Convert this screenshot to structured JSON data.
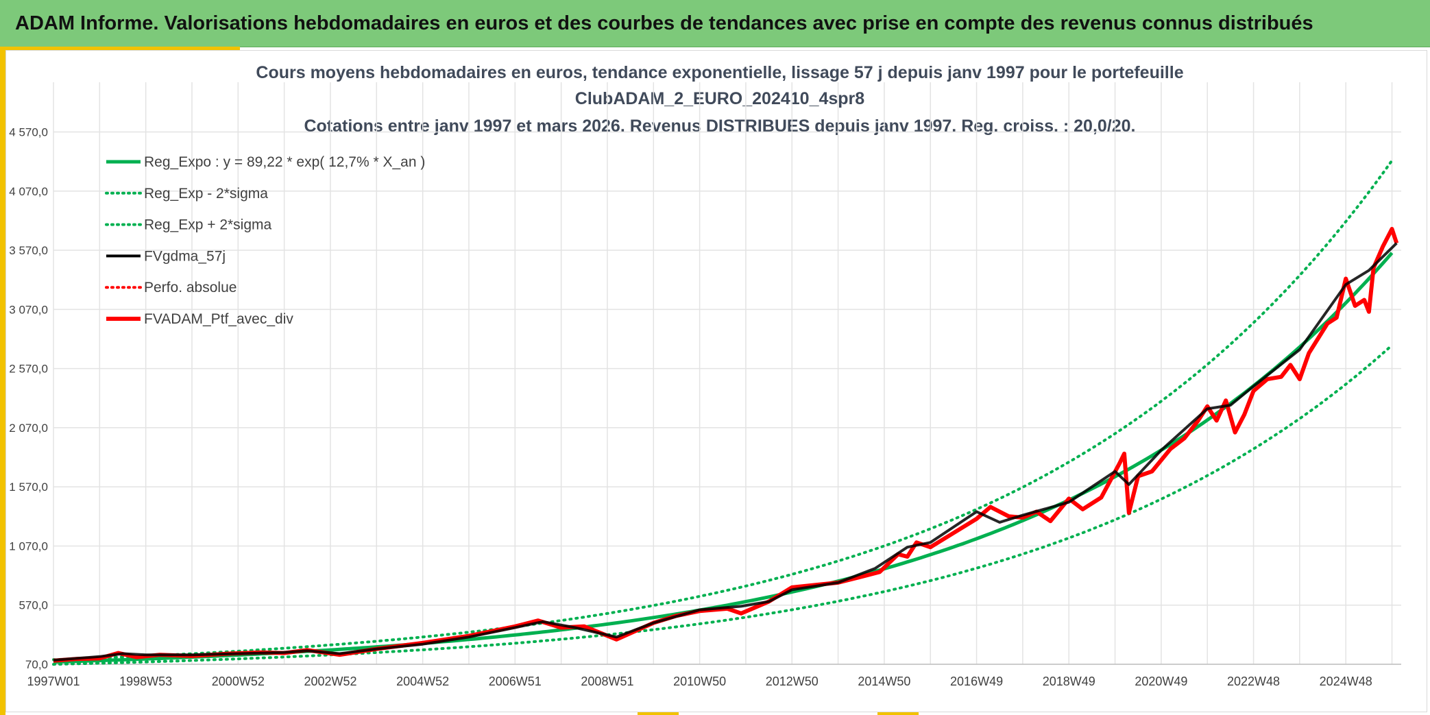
{
  "banner": {
    "title": "ADAM Informe. Valorisations hebdomadaires en euros et des courbes de tendances avec prise en compte des revenus connus distribués"
  },
  "colors": {
    "banner": "#7dc97a",
    "accent": "#f2c200",
    "regression": "#00b050",
    "smoothed": "#000000",
    "portfolio": "#ff0000"
  },
  "chart_data": {
    "type": "line",
    "title_lines": [
      "Cours moyens hebdomadaires en euros, tendance exponentielle, lissage 57 j depuis janv 1997 pour le portefeuille",
      "ClubADAM_2_EURO_202410_4spr8",
      "Cotations entre janv 1997 et mars 2026. Revenus DISTRIBUES depuis janv 1997. Reg. croiss. : 20,0/20."
    ],
    "x_tick_labels": [
      "1997W01",
      "1998W53",
      "2000W52",
      "2002W52",
      "2004W52",
      "2006W51",
      "2008W51",
      "2010W50",
      "2012W50",
      "2014W50",
      "2016W49",
      "2018W49",
      "2020W49",
      "2022W48",
      "2024W48"
    ],
    "x_range_years": [
      1997.0,
      2026.2
    ],
    "y_tick_labels": [
      "70,0",
      "570,0",
      "1 070,0",
      "1 570,0",
      "2 070,0",
      "2 570,0",
      "3 070,0",
      "3 570,0",
      "4 070,0",
      "4 570,0"
    ],
    "y_ticks": [
      70,
      570,
      1070,
      1570,
      2070,
      2570,
      3070,
      3570,
      4070,
      4570
    ],
    "ylim": [
      70,
      4990
    ],
    "grid": true,
    "legend_position": "top-left",
    "regression": {
      "a": 89.22,
      "rate": 0.127,
      "sigma_factor": 0.22
    },
    "series": [
      {
        "name": "Reg_Expo : y = 89,22 * exp( 12,7% *  X_an )",
        "style": "solid",
        "color": "#00b050",
        "width": 5
      },
      {
        "name": "Reg_Exp - 2*sigma",
        "style": "dotted",
        "color": "#00b050",
        "width": 4
      },
      {
        "name": "Reg_Exp + 2*sigma",
        "style": "dotted",
        "color": "#00b050",
        "width": 4
      },
      {
        "name": "FVgdma_57j",
        "style": "solid",
        "color": "#000000",
        "width": 4,
        "points": [
          [
            1997.0,
            105
          ],
          [
            1998.0,
            135
          ],
          [
            1998.5,
            160
          ],
          [
            1999.0,
            150
          ],
          [
            2000.0,
            150
          ],
          [
            2001.0,
            160
          ],
          [
            2002.0,
            170
          ],
          [
            2002.5,
            185
          ],
          [
            2003.2,
            160
          ],
          [
            2004.0,
            200
          ],
          [
            2005.0,
            240
          ],
          [
            2006.0,
            300
          ],
          [
            2007.0,
            380
          ],
          [
            2007.6,
            430
          ],
          [
            2008.3,
            380
          ],
          [
            2009.2,
            300
          ],
          [
            2010.0,
            420
          ],
          [
            2011.0,
            530
          ],
          [
            2011.9,
            560
          ],
          [
            2012.5,
            600
          ],
          [
            2013.0,
            700
          ],
          [
            2014.0,
            760
          ],
          [
            2014.8,
            880
          ],
          [
            2015.5,
            1060
          ],
          [
            2016.0,
            1100
          ],
          [
            2017.0,
            1360
          ],
          [
            2017.5,
            1270
          ],
          [
            2018.0,
            1330
          ],
          [
            2019.0,
            1440
          ],
          [
            2020.0,
            1700
          ],
          [
            2020.3,
            1590
          ],
          [
            2021.0,
            1880
          ],
          [
            2022.0,
            2230
          ],
          [
            2022.5,
            2260
          ],
          [
            2023.0,
            2420
          ],
          [
            2024.0,
            2730
          ],
          [
            2025.0,
            3280
          ],
          [
            2025.5,
            3400
          ],
          [
            2026.1,
            3630
          ]
        ]
      },
      {
        "name": "Perfo. absolue",
        "style": "dotted",
        "color": "#ff0000",
        "width": 4
      },
      {
        "name": "FVADAM_Ptf_avec_div",
        "style": "solid",
        "color": "#ff0000",
        "width": 6,
        "points": [
          [
            1997.0,
            100
          ],
          [
            1997.5,
            115
          ],
          [
            1998.0,
            120
          ],
          [
            1998.4,
            165
          ],
          [
            1998.8,
            130
          ],
          [
            1999.3,
            150
          ],
          [
            2000.0,
            140
          ],
          [
            2000.8,
            160
          ],
          [
            2001.5,
            170
          ],
          [
            2002.0,
            165
          ],
          [
            2002.5,
            190
          ],
          [
            2003.2,
            150
          ],
          [
            2004.0,
            200
          ],
          [
            2005.0,
            250
          ],
          [
            2006.0,
            310
          ],
          [
            2007.0,
            390
          ],
          [
            2007.5,
            440
          ],
          [
            2008.0,
            380
          ],
          [
            2008.5,
            390
          ],
          [
            2009.2,
            280
          ],
          [
            2010.0,
            420
          ],
          [
            2010.5,
            480
          ],
          [
            2011.0,
            520
          ],
          [
            2011.6,
            540
          ],
          [
            2011.9,
            500
          ],
          [
            2012.5,
            600
          ],
          [
            2013.0,
            720
          ],
          [
            2014.0,
            760
          ],
          [
            2014.5,
            810
          ],
          [
            2014.9,
            850
          ],
          [
            2015.3,
            1000
          ],
          [
            2015.5,
            980
          ],
          [
            2015.7,
            1100
          ],
          [
            2016.0,
            1060
          ],
          [
            2016.5,
            1180
          ],
          [
            2017.0,
            1300
          ],
          [
            2017.3,
            1400
          ],
          [
            2017.7,
            1320
          ],
          [
            2018.0,
            1310
          ],
          [
            2018.3,
            1360
          ],
          [
            2018.6,
            1280
          ],
          [
            2019.0,
            1470
          ],
          [
            2019.3,
            1380
          ],
          [
            2019.7,
            1480
          ],
          [
            2020.1,
            1770
          ],
          [
            2020.2,
            1850
          ],
          [
            2020.3,
            1350
          ],
          [
            2020.5,
            1660
          ],
          [
            2020.8,
            1700
          ],
          [
            2021.2,
            1890
          ],
          [
            2021.5,
            1980
          ],
          [
            2021.8,
            2130
          ],
          [
            2022.0,
            2250
          ],
          [
            2022.2,
            2130
          ],
          [
            2022.4,
            2300
          ],
          [
            2022.6,
            2030
          ],
          [
            2022.8,
            2180
          ],
          [
            2023.0,
            2380
          ],
          [
            2023.3,
            2480
          ],
          [
            2023.6,
            2500
          ],
          [
            2023.8,
            2600
          ],
          [
            2024.0,
            2480
          ],
          [
            2024.2,
            2700
          ],
          [
            2024.6,
            2950
          ],
          [
            2024.8,
            3000
          ],
          [
            2025.0,
            3330
          ],
          [
            2025.2,
            3100
          ],
          [
            2025.4,
            3150
          ],
          [
            2025.5,
            3050
          ],
          [
            2025.6,
            3420
          ],
          [
            2025.8,
            3600
          ],
          [
            2026.0,
            3750
          ],
          [
            2026.1,
            3630
          ]
        ]
      }
    ]
  }
}
